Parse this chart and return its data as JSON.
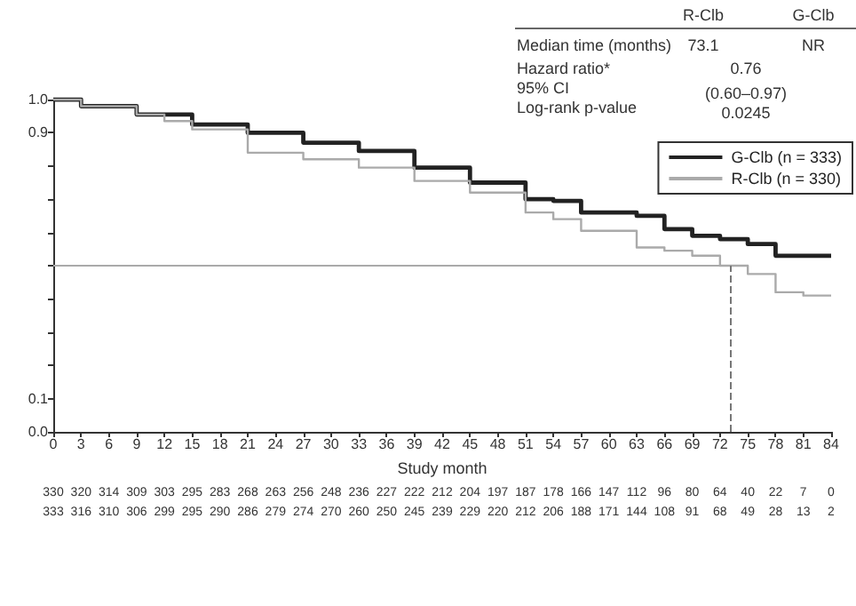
{
  "chart_data": {
    "type": "step",
    "xlabel": "Study month",
    "xlim": [
      0,
      84
    ],
    "xticks": [
      0,
      3,
      6,
      9,
      12,
      15,
      18,
      21,
      24,
      27,
      30,
      33,
      36,
      39,
      42,
      45,
      48,
      51,
      54,
      57,
      60,
      63,
      66,
      69,
      72,
      75,
      78,
      81,
      84
    ],
    "ylim": [
      0,
      1
    ],
    "yticks": [
      {
        "value": 0,
        "label": "0.0"
      },
      {
        "value": 0.1,
        "label": "0.1"
      },
      {
        "value": 0.2,
        "label": null
      },
      {
        "value": 0.3,
        "label": null
      },
      {
        "value": 0.4,
        "label": null
      },
      {
        "value": 0.5,
        "label": null
      },
      {
        "value": 0.6,
        "label": null
      },
      {
        "value": 0.7,
        "label": null
      },
      {
        "value": 0.8,
        "label": null
      },
      {
        "value": 0.9,
        "label": "0.9"
      },
      {
        "value": 1,
        "label": "1.0"
      }
    ],
    "series": [
      {
        "name": "G-Clb (n = 333)",
        "color": "#222222",
        "x": [
          0,
          3,
          9,
          15,
          21,
          27,
          33,
          39,
          45,
          51,
          54,
          57,
          63,
          66,
          69,
          72,
          75,
          78,
          81,
          84
        ],
        "values": [
          1.0,
          0.98,
          0.955,
          0.925,
          0.9,
          0.87,
          0.845,
          0.795,
          0.75,
          0.7,
          0.695,
          0.66,
          0.65,
          0.61,
          0.59,
          0.58,
          0.565,
          0.53,
          0.53,
          0.53
        ]
      },
      {
        "name": "R-Clb (n = 330)",
        "color": "#aaaaaa",
        "x": [
          0,
          3,
          9,
          12,
          15,
          21,
          27,
          33,
          39,
          45,
          51,
          54,
          57,
          63,
          66,
          69,
          72,
          75,
          78,
          81,
          84
        ],
        "values": [
          1.0,
          0.98,
          0.955,
          0.935,
          0.91,
          0.84,
          0.82,
          0.795,
          0.755,
          0.72,
          0.66,
          0.64,
          0.605,
          0.555,
          0.545,
          0.53,
          0.5,
          0.475,
          0.42,
          0.41,
          0.41
        ]
      }
    ],
    "ref_lines": [
      {
        "axis": "y",
        "value": 0.5,
        "color": "#aaaaaa",
        "line_style": "solid"
      },
      {
        "axis": "x",
        "value": 73.1,
        "color": "#777777",
        "line_style": "dashed"
      }
    ],
    "annotations": [
      "R-Clb",
      "G-Clb",
      "Median time (months)",
      "73.1",
      "NR",
      "Hazard ratio*",
      "0.76",
      "95% CI",
      "(0.60–0.97)",
      "Log-rank p-value",
      "0.0245",
      "330 320 314 309 303 295 283 268 263 256 248 236 227 222 212 204 197 187 178 166 147 112 96 80 64 40 22 7 0",
      "333 316 310 306 299 295 290 286 279 274 270 260 250 245 239 229 220 212 206 188 171 144 108 91 68 49 28 13 2"
    ],
    "legend": "top right",
    "grid": false,
    "marker": "none",
    "line_style": "solid"
  }
}
